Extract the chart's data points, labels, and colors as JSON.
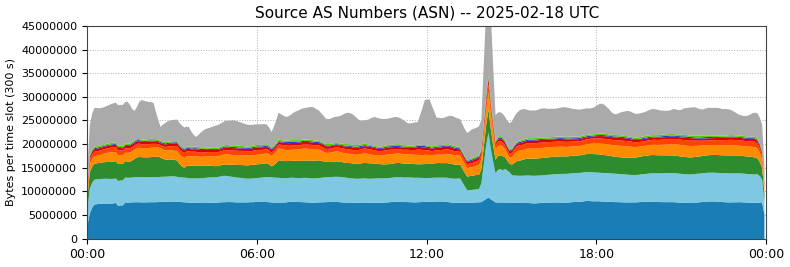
{
  "title": "Source AS Numbers (ASN) -- 2025-02-18 UTC",
  "ylabel": "Bytes per time slot (300 s)",
  "xlim": [
    0,
    288
  ],
  "ylim": [
    0,
    45000000
  ],
  "yticks": [
    0,
    5000000,
    10000000,
    15000000,
    20000000,
    25000000,
    30000000,
    35000000,
    40000000,
    45000000
  ],
  "xtick_positions": [
    0,
    72,
    144,
    216,
    288
  ],
  "xtick_labels": [
    "00:00",
    "06:00",
    "12:00",
    "18:00",
    "00:00"
  ],
  "background_color": "#ffffff",
  "grid_color": "#b0b0b0",
  "colors": [
    "#1a7db5",
    "#7ec8e3",
    "#2e8b2e",
    "#ff8c00",
    "#ff4400",
    "#dd0000",
    "#3333cc",
    "#55cc00",
    "#aaaaaa"
  ],
  "n_points": 288,
  "seed": 1234
}
